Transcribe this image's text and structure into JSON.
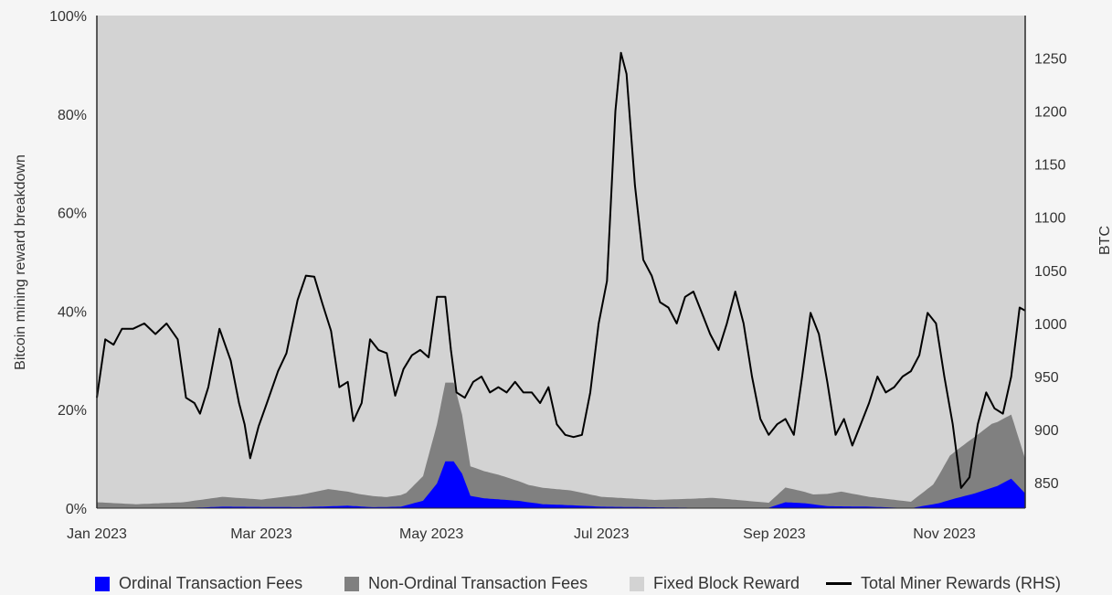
{
  "chart_data": {
    "type": "area",
    "title": "",
    "ylabel": "Bitcoin mining reward breakdown",
    "y2label": "BTC",
    "x_tick_labels": [
      "Jan 2023",
      "Mar 2023",
      "May 2023",
      "Jul 2023",
      "Sep 2023",
      "Nov 2023"
    ],
    "y_tick_labels": [
      "0%",
      "20%",
      "40%",
      "60%",
      "80%",
      "100%"
    ],
    "y2_tick_labels": [
      "850",
      "900",
      "950",
      "1000",
      "1050",
      "1100",
      "1150",
      "1200",
      "1250"
    ],
    "ylim": [
      0,
      100
    ],
    "y2lim": [
      826,
      1290
    ],
    "x_range": [
      "2023-01-01",
      "2023-11-30"
    ],
    "grid": false,
    "legend_position": "bottom",
    "colors": {
      "ordinal": "#0000ff",
      "non_ordinal": "#808080",
      "fixed": "#d3d3d3",
      "total": "#000000"
    },
    "series": [
      {
        "name": "Ordinal Transaction Fees",
        "axis": "left",
        "unit": "%",
        "points": [
          [
            "2023-01-01",
            0
          ],
          [
            "2023-02-01",
            0
          ],
          [
            "2023-02-15",
            0.3
          ],
          [
            "2023-03-15",
            0.2
          ],
          [
            "2023-04-01",
            0.5
          ],
          [
            "2023-04-10",
            0.2
          ],
          [
            "2023-04-20",
            0.3
          ],
          [
            "2023-04-28",
            1.5
          ],
          [
            "2023-05-03",
            5
          ],
          [
            "2023-05-06",
            9.5
          ],
          [
            "2023-05-09",
            9.5
          ],
          [
            "2023-05-12",
            7
          ],
          [
            "2023-05-15",
            2.5
          ],
          [
            "2023-05-20",
            2
          ],
          [
            "2023-06-01",
            1.5
          ],
          [
            "2023-06-10",
            0.8
          ],
          [
            "2023-06-20",
            0.6
          ],
          [
            "2023-07-01",
            0.3
          ],
          [
            "2023-08-01",
            0.1
          ],
          [
            "2023-08-30",
            0.1
          ],
          [
            "2023-09-05",
            1.2
          ],
          [
            "2023-09-12",
            1
          ],
          [
            "2023-09-20",
            0.4
          ],
          [
            "2023-10-05",
            0.3
          ],
          [
            "2023-10-20",
            0
          ],
          [
            "2023-10-30",
            1
          ],
          [
            "2023-11-05",
            2
          ],
          [
            "2023-11-12",
            3
          ],
          [
            "2023-11-20",
            4.5
          ],
          [
            "2023-11-25",
            6
          ],
          [
            "2023-11-30",
            3
          ]
        ]
      },
      {
        "name": "Non-Ordinal Transaction Fees",
        "axis": "left",
        "unit": "%",
        "points": [
          [
            "2023-01-01",
            1.2
          ],
          [
            "2023-01-15",
            0.8
          ],
          [
            "2023-02-01",
            1.2
          ],
          [
            "2023-02-15",
            2
          ],
          [
            "2023-03-01",
            1.5
          ],
          [
            "2023-03-15",
            2.5
          ],
          [
            "2023-03-25",
            3.5
          ],
          [
            "2023-04-05",
            2.5
          ],
          [
            "2023-04-15",
            2
          ],
          [
            "2023-04-22",
            2.5
          ],
          [
            "2023-04-28",
            5
          ],
          [
            "2023-05-03",
            12
          ],
          [
            "2023-05-06",
            16
          ],
          [
            "2023-05-09",
            16
          ],
          [
            "2023-05-12",
            12
          ],
          [
            "2023-05-15",
            6
          ],
          [
            "2023-05-25",
            5
          ],
          [
            "2023-06-05",
            3.5
          ],
          [
            "2023-06-20",
            3
          ],
          [
            "2023-07-01",
            2
          ],
          [
            "2023-07-20",
            1.5
          ],
          [
            "2023-08-10",
            2
          ],
          [
            "2023-08-30",
            1
          ],
          [
            "2023-09-05",
            3
          ],
          [
            "2023-09-15",
            2
          ],
          [
            "2023-09-25",
            3
          ],
          [
            "2023-10-05",
            2
          ],
          [
            "2023-10-20",
            1.3
          ],
          [
            "2023-10-28",
            4
          ],
          [
            "2023-11-03",
            9
          ],
          [
            "2023-11-10",
            11
          ],
          [
            "2023-11-18",
            13
          ],
          [
            "2023-11-25",
            13
          ],
          [
            "2023-11-30",
            7
          ]
        ]
      },
      {
        "name": "Fixed Block Reward",
        "axis": "left",
        "unit": "%",
        "fills_to": 100
      },
      {
        "name": "Total Miner Rewards (RHS)",
        "axis": "right",
        "unit": "BTC",
        "points": [
          [
            "2023-01-01",
            930
          ],
          [
            "2023-01-04",
            985
          ],
          [
            "2023-01-07",
            980
          ],
          [
            "2023-01-10",
            995
          ],
          [
            "2023-01-14",
            995
          ],
          [
            "2023-01-18",
            1000
          ],
          [
            "2023-01-22",
            990
          ],
          [
            "2023-01-26",
            1000
          ],
          [
            "2023-01-30",
            985
          ],
          [
            "2023-02-02",
            930
          ],
          [
            "2023-02-05",
            925
          ],
          [
            "2023-02-07",
            915
          ],
          [
            "2023-02-10",
            940
          ],
          [
            "2023-02-14",
            995
          ],
          [
            "2023-02-18",
            965
          ],
          [
            "2023-02-21",
            925
          ],
          [
            "2023-02-23",
            905
          ],
          [
            "2023-02-25",
            873
          ],
          [
            "2023-02-28",
            903
          ],
          [
            "2023-03-03",
            925
          ],
          [
            "2023-03-07",
            955
          ],
          [
            "2023-03-10",
            972
          ],
          [
            "2023-03-14",
            1022
          ],
          [
            "2023-03-17",
            1045
          ],
          [
            "2023-03-20",
            1044
          ],
          [
            "2023-03-23",
            1018
          ],
          [
            "2023-03-26",
            993
          ],
          [
            "2023-03-29",
            940
          ],
          [
            "2023-04-01",
            945
          ],
          [
            "2023-04-03",
            908
          ],
          [
            "2023-04-06",
            925
          ],
          [
            "2023-04-09",
            985
          ],
          [
            "2023-04-12",
            975
          ],
          [
            "2023-04-15",
            972
          ],
          [
            "2023-04-18",
            932
          ],
          [
            "2023-04-21",
            957
          ],
          [
            "2023-04-24",
            970
          ],
          [
            "2023-04-27",
            975
          ],
          [
            "2023-04-30",
            968
          ],
          [
            "2023-05-03",
            1025
          ],
          [
            "2023-05-06",
            1025
          ],
          [
            "2023-05-08",
            975
          ],
          [
            "2023-05-10",
            935
          ],
          [
            "2023-05-13",
            930
          ],
          [
            "2023-05-16",
            945
          ],
          [
            "2023-05-19",
            950
          ],
          [
            "2023-05-22",
            935
          ],
          [
            "2023-05-25",
            940
          ],
          [
            "2023-05-28",
            935
          ],
          [
            "2023-05-31",
            945
          ],
          [
            "2023-06-03",
            935
          ],
          [
            "2023-06-06",
            935
          ],
          [
            "2023-06-09",
            925
          ],
          [
            "2023-06-12",
            940
          ],
          [
            "2023-06-15",
            905
          ],
          [
            "2023-06-18",
            895
          ],
          [
            "2023-06-21",
            893
          ],
          [
            "2023-06-24",
            895
          ],
          [
            "2023-06-27",
            935
          ],
          [
            "2023-06-30",
            1000
          ],
          [
            "2023-07-03",
            1040
          ],
          [
            "2023-07-06",
            1200
          ],
          [
            "2023-07-08",
            1255
          ],
          [
            "2023-07-10",
            1235
          ],
          [
            "2023-07-13",
            1130
          ],
          [
            "2023-07-16",
            1060
          ],
          [
            "2023-07-19",
            1045
          ],
          [
            "2023-07-22",
            1020
          ],
          [
            "2023-07-25",
            1015
          ],
          [
            "2023-07-28",
            1000
          ],
          [
            "2023-07-31",
            1025
          ],
          [
            "2023-08-03",
            1030
          ],
          [
            "2023-08-06",
            1010
          ],
          [
            "2023-08-09",
            990
          ],
          [
            "2023-08-12",
            975
          ],
          [
            "2023-08-15",
            1000
          ],
          [
            "2023-08-18",
            1030
          ],
          [
            "2023-08-21",
            1000
          ],
          [
            "2023-08-24",
            950
          ],
          [
            "2023-08-27",
            910
          ],
          [
            "2023-08-30",
            895
          ],
          [
            "2023-09-02",
            905
          ],
          [
            "2023-09-05",
            910
          ],
          [
            "2023-09-08",
            895
          ],
          [
            "2023-09-11",
            950
          ],
          [
            "2023-09-14",
            1010
          ],
          [
            "2023-09-17",
            990
          ],
          [
            "2023-09-20",
            945
          ],
          [
            "2023-09-23",
            895
          ],
          [
            "2023-09-26",
            910
          ],
          [
            "2023-09-29",
            885
          ],
          [
            "2023-10-02",
            905
          ],
          [
            "2023-10-05",
            925
          ],
          [
            "2023-10-08",
            950
          ],
          [
            "2023-10-11",
            935
          ],
          [
            "2023-10-14",
            940
          ],
          [
            "2023-10-17",
            950
          ],
          [
            "2023-10-20",
            955
          ],
          [
            "2023-10-23",
            970
          ],
          [
            "2023-10-26",
            1010
          ],
          [
            "2023-10-29",
            1000
          ],
          [
            "2023-11-01",
            950
          ],
          [
            "2023-11-04",
            905
          ],
          [
            "2023-11-07",
            845
          ],
          [
            "2023-11-10",
            855
          ],
          [
            "2023-11-13",
            905
          ],
          [
            "2023-11-16",
            935
          ],
          [
            "2023-11-19",
            920
          ],
          [
            "2023-11-22",
            915
          ],
          [
            "2023-11-25",
            950
          ],
          [
            "2023-11-28",
            1015
          ],
          [
            "2023-11-30",
            1012
          ]
        ]
      }
    ]
  }
}
